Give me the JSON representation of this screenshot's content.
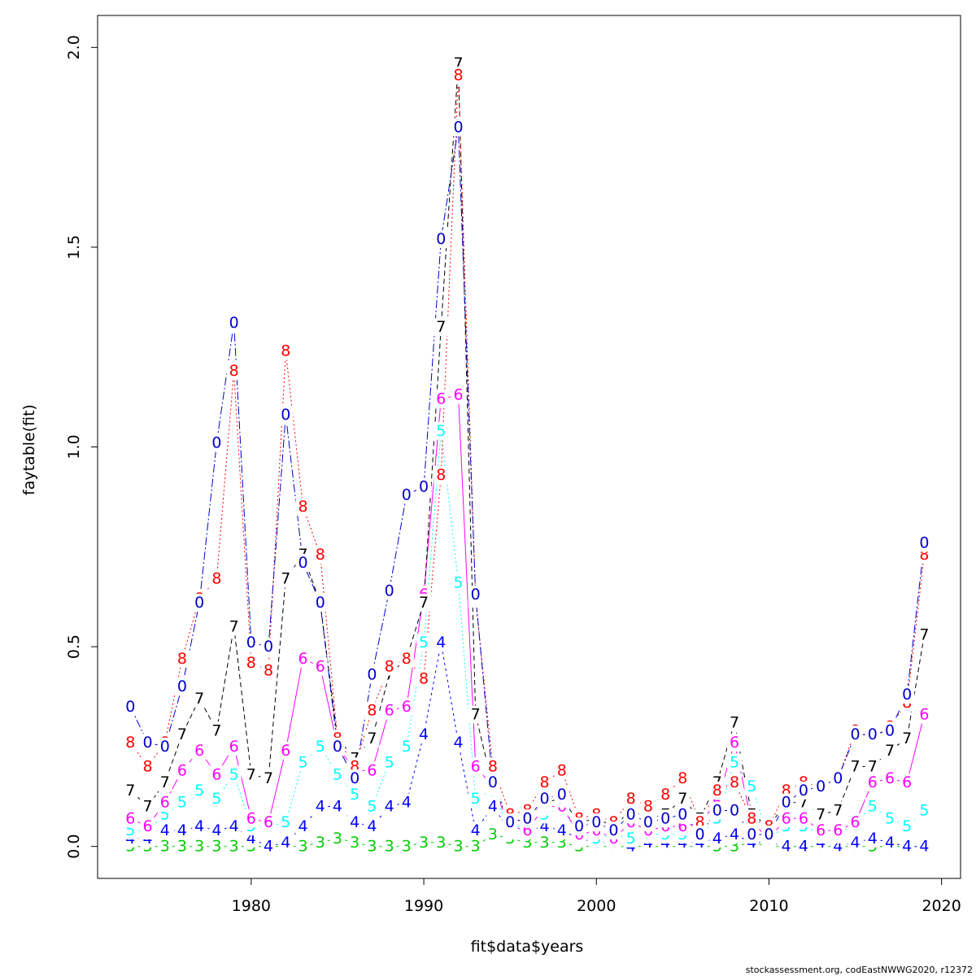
{
  "chart_data": {
    "type": "line",
    "xlabel": "fit$data$years",
    "ylabel": "faytable(fit)",
    "credit": "stockassessment.org, codEastNWWG2020, r12372",
    "xlim": [
      1971.1,
      2021.1
    ],
    "ylim": [
      -0.08,
      2.08
    ],
    "x_ticks": [
      1980,
      1990,
      2000,
      2010,
      2020
    ],
    "y_ticks": [
      0.0,
      0.5,
      1.0,
      1.5,
      2.0
    ],
    "grid": false,
    "legend": "none",
    "x": [
      1973,
      1974,
      1975,
      1976,
      1977,
      1978,
      1979,
      1980,
      1981,
      1982,
      1983,
      1984,
      1985,
      1986,
      1987,
      1988,
      1989,
      1990,
      1991,
      1992,
      1993,
      1994,
      1995,
      1996,
      1997,
      1998,
      1999,
      2000,
      2001,
      2002,
      2003,
      2004,
      2005,
      2006,
      2007,
      2008,
      2009,
      2010,
      2011,
      2012,
      2013,
      2014,
      2015,
      2016,
      2017,
      2018,
      2019
    ],
    "series": [
      {
        "label": "3",
        "color": "#00cd00",
        "dash": "",
        "values": [
          0.0,
          0.0,
          0.0,
          0.0,
          0.0,
          0.0,
          0.0,
          0.0,
          0.0,
          0.0,
          0.0,
          0.01,
          0.02,
          0.01,
          0.0,
          0.0,
          0.0,
          0.01,
          0.01,
          0.0,
          0.0,
          0.03,
          0.02,
          0.01,
          0.01,
          0.01,
          0.0,
          0.0,
          0.0,
          0.0,
          0.0,
          0.0,
          0.0,
          0.0,
          0.0,
          0.0,
          0.01,
          0.0,
          0.0,
          0.0,
          0.0,
          0.0,
          0.0,
          0.0,
          0.0,
          0.0,
          0.0
        ]
      },
      {
        "label": "4",
        "color": "#0000ff",
        "dash": "3,4",
        "values": [
          0.02,
          0.02,
          0.04,
          0.04,
          0.05,
          0.04,
          0.05,
          0.02,
          0.0,
          0.01,
          0.05,
          0.1,
          0.1,
          0.06,
          0.05,
          0.1,
          0.11,
          0.28,
          0.51,
          0.26,
          0.04,
          0.1,
          0.04,
          0.04,
          0.05,
          0.04,
          0.02,
          0.01,
          0.01,
          0.0,
          0.01,
          0.01,
          0.01,
          0.01,
          0.02,
          0.03,
          0.01,
          0.01,
          0.0,
          0.0,
          0.01,
          0.0,
          0.01,
          0.02,
          0.01,
          0.0,
          0.0
        ]
      },
      {
        "label": "5",
        "color": "#00ffff",
        "dash": "2,3",
        "values": [
          0.04,
          0.04,
          0.08,
          0.11,
          0.14,
          0.12,
          0.18,
          0.05,
          0.05,
          0.06,
          0.21,
          0.25,
          0.18,
          0.13,
          0.1,
          0.21,
          0.25,
          0.51,
          1.04,
          0.66,
          0.12,
          0.14,
          0.04,
          0.06,
          0.08,
          0.1,
          0.04,
          0.02,
          0.03,
          0.02,
          0.03,
          0.03,
          0.03,
          0.03,
          0.07,
          0.21,
          0.15,
          0.02,
          0.05,
          0.05,
          0.03,
          0.03,
          0.06,
          0.1,
          0.07,
          0.05,
          0.09
        ]
      },
      {
        "label": "6",
        "color": "#ff00ff",
        "dash": "",
        "values": [
          0.07,
          0.05,
          0.11,
          0.19,
          0.24,
          0.18,
          0.25,
          0.07,
          0.06,
          0.24,
          0.47,
          0.45,
          0.25,
          0.19,
          0.19,
          0.34,
          0.35,
          0.63,
          1.12,
          1.13,
          0.2,
          0.15,
          0.05,
          0.04,
          0.1,
          0.1,
          0.03,
          0.04,
          0.02,
          0.06,
          0.04,
          0.05,
          0.05,
          0.06,
          0.11,
          0.26,
          0.06,
          0.02,
          0.07,
          0.07,
          0.04,
          0.04,
          0.06,
          0.16,
          0.17,
          0.16,
          0.33
        ]
      },
      {
        "label": "7",
        "color": "#000000",
        "dash": "6,4",
        "values": [
          0.14,
          0.1,
          0.16,
          0.28,
          0.37,
          0.29,
          0.55,
          0.18,
          0.17,
          0.67,
          0.73,
          0.61,
          0.27,
          0.22,
          0.27,
          0.43,
          0.47,
          0.61,
          1.3,
          1.96,
          0.33,
          0.15,
          0.06,
          0.07,
          0.11,
          0.12,
          0.06,
          0.07,
          0.05,
          0.09,
          0.07,
          0.08,
          0.12,
          0.07,
          0.16,
          0.31,
          0.08,
          0.05,
          0.11,
          0.11,
          0.08,
          0.09,
          0.2,
          0.2,
          0.24,
          0.27,
          0.53
        ]
      },
      {
        "label": "8",
        "color": "#ff0000",
        "dash": "2,3",
        "values": [
          0.26,
          0.2,
          0.26,
          0.47,
          0.62,
          0.67,
          1.19,
          0.46,
          0.44,
          1.24,
          0.85,
          0.73,
          0.27,
          0.2,
          0.34,
          0.45,
          0.47,
          0.42,
          0.93,
          1.93,
          0.62,
          0.2,
          0.08,
          0.09,
          0.16,
          0.19,
          0.07,
          0.08,
          0.06,
          0.12,
          0.1,
          0.13,
          0.17,
          0.06,
          0.14,
          0.16,
          0.07,
          0.05,
          0.14,
          0.16,
          0.15,
          0.17,
          0.29,
          0.27,
          0.3,
          0.36,
          0.73
        ]
      },
      {
        "label": "0",
        "color": "#0000cd",
        "dash": "10,3,2,3",
        "values": [
          0.35,
          0.26,
          0.25,
          0.4,
          0.61,
          1.01,
          1.31,
          0.51,
          0.5,
          1.08,
          0.71,
          0.61,
          0.25,
          0.17,
          0.43,
          0.64,
          0.88,
          0.9,
          1.52,
          1.8,
          0.63,
          0.16,
          0.06,
          0.07,
          0.12,
          0.13,
          0.05,
          0.06,
          0.04,
          0.08,
          0.06,
          0.07,
          0.08,
          0.03,
          0.09,
          0.09,
          0.03,
          0.03,
          0.11,
          0.14,
          0.15,
          0.17,
          0.28,
          0.28,
          0.29,
          0.38,
          0.76
        ]
      }
    ]
  }
}
